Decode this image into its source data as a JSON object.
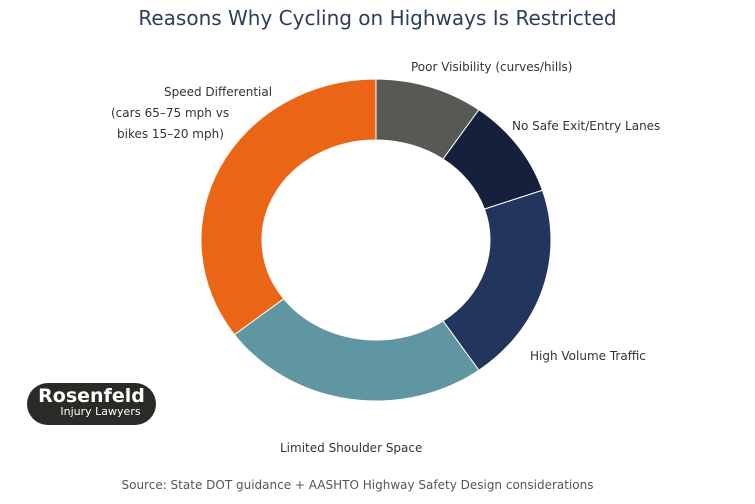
{
  "chart_data": {
    "type": "pie",
    "donut": true,
    "title": "Reasons Why Cycling on Highways Is Restricted",
    "slices": [
      {
        "label": "Poor Visibility (curves/hills)",
        "value": 10,
        "color": "#575a52"
      },
      {
        "label": "No Safe Exit/Entry Lanes",
        "value": 10,
        "color": "#161f3b"
      },
      {
        "label": "High Volume Traffic",
        "value": 20,
        "color": "#22365d"
      },
      {
        "label": "Limited Shoulder Space",
        "value": 25,
        "color": "#6096a1"
      },
      {
        "label_lines": [
          "Speed Differential",
          "(cars 65–75 mph vs",
          "bikes 15–20 mph)"
        ],
        "label": "Speed Differential (cars 65–75 mph vs bikes 15–20 mph)",
        "value": 35,
        "color": "#ea6516"
      }
    ],
    "source": "Source: State DOT guidance + AASHTO Highway Safety Design considerations"
  },
  "logo": {
    "name": "Rosenfeld",
    "subtitle": "Injury Lawyers"
  }
}
